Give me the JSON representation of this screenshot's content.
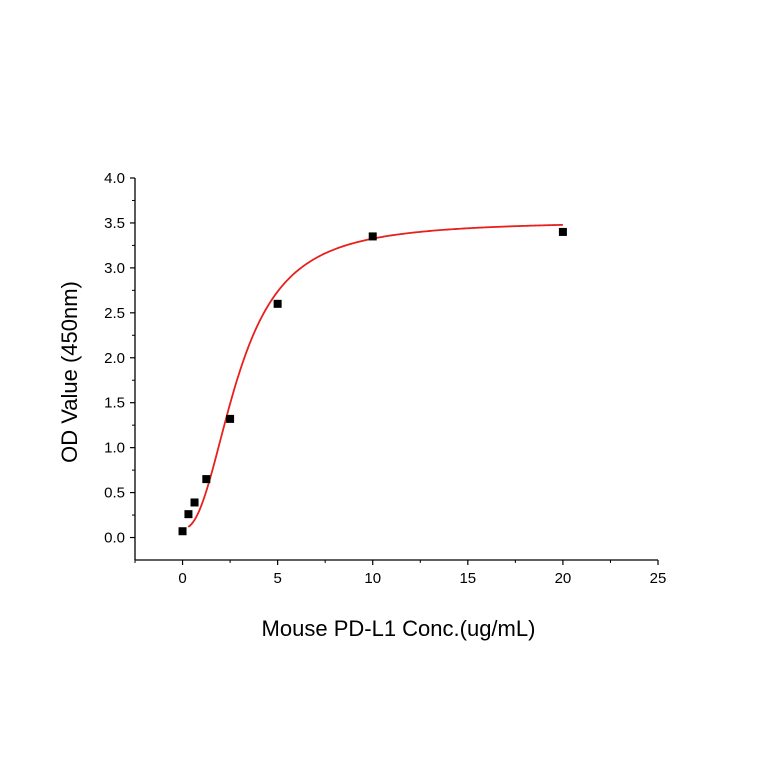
{
  "chart_data": {
    "type": "scatter",
    "title": "",
    "xlabel": "Mouse PD-L1 Conc.(ug/mL)",
    "ylabel": "OD Value (450nm)",
    "xlim": [
      -2.5,
      25
    ],
    "ylim": [
      -0.25,
      4.0
    ],
    "xticks": [
      0,
      5,
      10,
      15,
      20,
      25
    ],
    "yticks": [
      0.0,
      0.5,
      1.0,
      1.5,
      2.0,
      2.5,
      3.0,
      3.5,
      4.0
    ],
    "xtick_labels": [
      "0",
      "5",
      "10",
      "15",
      "20",
      "25"
    ],
    "ytick_labels": [
      "0.0",
      "0.5",
      "1.0",
      "1.5",
      "2.0",
      "2.5",
      "3.0",
      "3.5",
      "4.0"
    ],
    "grid": false,
    "legend": "none",
    "series": [
      {
        "kind": "points",
        "marker": "square",
        "color": "#000000",
        "points": [
          {
            "x": 0.0,
            "y": 0.07
          },
          {
            "x": 0.31,
            "y": 0.26
          },
          {
            "x": 0.63,
            "y": 0.39
          },
          {
            "x": 1.25,
            "y": 0.65
          },
          {
            "x": 2.5,
            "y": 1.32
          },
          {
            "x": 5.0,
            "y": 2.6
          },
          {
            "x": 10.0,
            "y": 3.35
          },
          {
            "x": 20.0,
            "y": 3.4
          }
        ]
      },
      {
        "kind": "fit",
        "color": "#e8201c",
        "model": "four-parameter logistic",
        "params": {
          "bottom": 0.1,
          "top": 3.52,
          "ec50": 2.95,
          "hill": 2.3
        },
        "x_range": [
          0.3,
          20.0
        ]
      }
    ]
  }
}
